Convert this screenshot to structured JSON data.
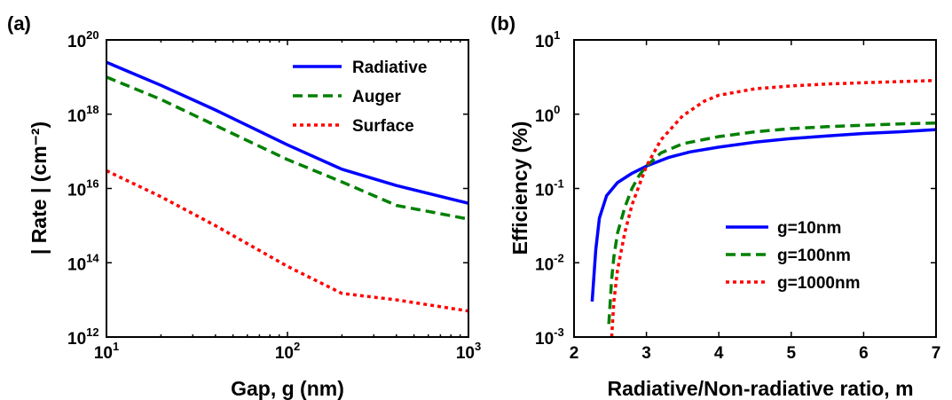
{
  "chart_data": [
    {
      "panel_label": "(a)",
      "type": "line",
      "xscale": "log",
      "yscale": "log",
      "xlabel": "Gap, g (nm)",
      "ylabel": "| Rate | (cm⁻²)",
      "xlim": [
        10,
        1000
      ],
      "ylim": [
        1000000000000.0,
        1e+20
      ],
      "xticks": [
        {
          "value": 10,
          "base": "10",
          "exp": "1"
        },
        {
          "value": 100,
          "base": "10",
          "exp": "2"
        },
        {
          "value": 1000,
          "base": "10",
          "exp": "3"
        }
      ],
      "yticks": [
        {
          "value": 1000000000000.0,
          "base": "10",
          "exp": "12"
        },
        {
          "value": 100000000000000.0,
          "base": "10",
          "exp": "14"
        },
        {
          "value": 1e+16,
          "base": "10",
          "exp": "16"
        },
        {
          "value": 1e+18,
          "base": "10",
          "exp": "18"
        },
        {
          "value": 1e+20,
          "base": "10",
          "exp": "20"
        }
      ],
      "grid": false,
      "legend_position": "top-right",
      "series": [
        {
          "name": "Radiative",
          "color": "#0000ff",
          "style": "solid",
          "x": [
            10,
            20,
            40,
            100,
            200,
            400,
            1000
          ],
          "y": [
            2.5e+19,
            6e+18,
            1.3e+18,
            1.5e+17,
            3.3e+16,
            1.2e+16,
            4000000000000000.0
          ]
        },
        {
          "name": "Auger",
          "color": "#008000",
          "style": "dashed",
          "x": [
            10,
            20,
            40,
            100,
            200,
            400,
            1000
          ],
          "y": [
            1e+19,
            2.5e+18,
            5e+17,
            6e+16,
            1.5e+16,
            3500000000000000.0,
            1500000000000000.0
          ]
        },
        {
          "name": "Surface",
          "color": "#ff0000",
          "style": "dotted",
          "x": [
            10,
            20,
            40,
            100,
            200,
            400,
            1000
          ],
          "y": [
            3e+16,
            6000000000000000.0,
            1000000000000000.0,
            80000000000000.0,
            15000000000000.0,
            10000000000000.0,
            5000000000000.0
          ]
        }
      ]
    },
    {
      "panel_label": "(b)",
      "type": "line",
      "xscale": "linear",
      "yscale": "log",
      "xlabel": "Radiative/Non-radiative ratio, m",
      "ylabel": "Efficiency (%)",
      "xlim": [
        2,
        7
      ],
      "ylim": [
        0.001,
        10
      ],
      "xticks": [
        {
          "value": 2,
          "label": "2"
        },
        {
          "value": 3,
          "label": "3"
        },
        {
          "value": 4,
          "label": "4"
        },
        {
          "value": 5,
          "label": "5"
        },
        {
          "value": 6,
          "label": "6"
        },
        {
          "value": 7,
          "label": "7"
        }
      ],
      "yticks": [
        {
          "value": 0.001,
          "base": "10",
          "exp": "-3"
        },
        {
          "value": 0.01,
          "base": "10",
          "exp": "-2"
        },
        {
          "value": 0.1,
          "base": "10",
          "exp": "-1"
        },
        {
          "value": 1,
          "base": "10",
          "exp": "0"
        },
        {
          "value": 10,
          "base": "10",
          "exp": "1"
        }
      ],
      "grid": false,
      "legend_position": "bottom-right",
      "series": [
        {
          "name": "g=10nm",
          "color": "#0000ff",
          "style": "solid",
          "x": [
            2.25,
            2.3,
            2.35,
            2.45,
            2.6,
            2.8,
            3.0,
            3.3,
            3.6,
            4.0,
            4.5,
            5.0,
            5.5,
            6.0,
            6.5,
            7.0
          ],
          "y": [
            0.003,
            0.015,
            0.04,
            0.08,
            0.12,
            0.16,
            0.2,
            0.26,
            0.31,
            0.36,
            0.42,
            0.47,
            0.51,
            0.55,
            0.58,
            0.62
          ]
        },
        {
          "name": "g=100nm",
          "color": "#008000",
          "style": "dashed",
          "x": [
            2.48,
            2.52,
            2.55,
            2.6,
            2.7,
            2.8,
            2.9,
            3.0,
            3.2,
            3.5,
            4.0,
            4.5,
            5.0,
            5.5,
            6.0,
            6.5,
            7.0
          ],
          "y": [
            0.0015,
            0.006,
            0.012,
            0.025,
            0.055,
            0.1,
            0.15,
            0.2,
            0.3,
            0.4,
            0.5,
            0.58,
            0.64,
            0.68,
            0.71,
            0.74,
            0.76
          ]
        },
        {
          "name": "g=1000nm",
          "color": "#ff0000",
          "style": "dotted",
          "x": [
            2.52,
            2.55,
            2.6,
            2.7,
            2.8,
            2.9,
            3.0,
            3.2,
            3.5,
            3.8,
            4.0,
            4.5,
            5.0,
            5.5,
            6.0,
            6.5,
            7.0
          ],
          "y": [
            0.001,
            0.003,
            0.008,
            0.025,
            0.06,
            0.11,
            0.2,
            0.45,
            0.95,
            1.5,
            1.8,
            2.2,
            2.4,
            2.55,
            2.65,
            2.75,
            2.85
          ]
        }
      ]
    }
  ]
}
